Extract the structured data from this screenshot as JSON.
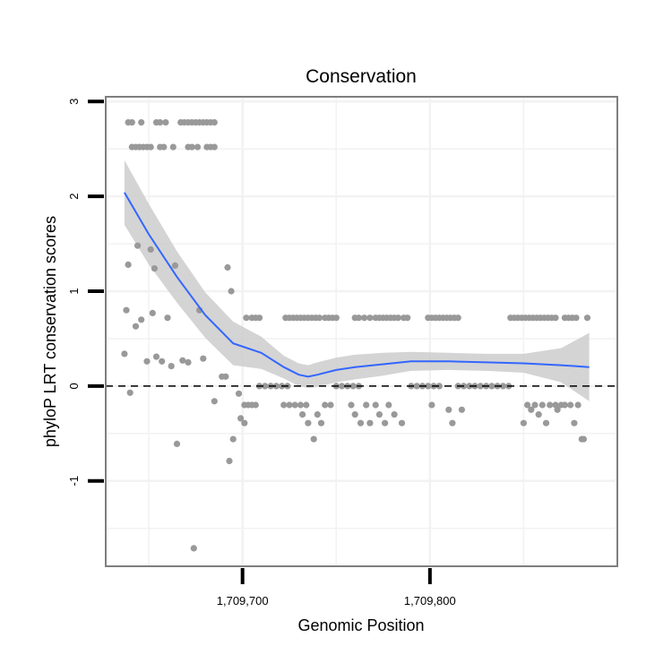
{
  "chart_data": {
    "type": "scatter",
    "title": "Conservation",
    "xlabel": "Genomic Position",
    "ylabel": "phyloP LRT conservation scores",
    "xlim": [
      1709627,
      1709900
    ],
    "ylim": [
      -1.9,
      3.05
    ],
    "x_ticks": [
      {
        "value": 1709700,
        "label": "1,709,700"
      },
      {
        "value": 1709800,
        "label": "1,709,800"
      }
    ],
    "y_ticks": [
      {
        "value": 3,
        "label": "3"
      },
      {
        "value": 2,
        "label": "2"
      },
      {
        "value": 1,
        "label": "1"
      },
      {
        "value": 0,
        "label": "0"
      },
      {
        "value": -1,
        "label": "-1"
      }
    ],
    "reference_line": {
      "y": 0,
      "style": "dashed"
    },
    "colors": {
      "points": "#999999",
      "smooth_line": "#3366ff",
      "confidence_band": "#cccccc",
      "panel_border": "#7f7f7f",
      "grid": "#f2f2f2"
    },
    "points": [
      [
        1709639,
        2.78
      ],
      [
        1709641,
        2.78
      ],
      [
        1709646,
        2.78
      ],
      [
        1709654,
        2.78
      ],
      [
        1709656,
        2.78
      ],
      [
        1709659,
        2.78
      ],
      [
        1709667,
        2.78
      ],
      [
        1709669,
        2.78
      ],
      [
        1709671,
        2.78
      ],
      [
        1709673,
        2.78
      ],
      [
        1709675,
        2.78
      ],
      [
        1709677,
        2.78
      ],
      [
        1709679,
        2.78
      ],
      [
        1709681,
        2.78
      ],
      [
        1709683,
        2.78
      ],
      [
        1709685,
        2.78
      ],
      [
        1709641,
        2.52
      ],
      [
        1709643,
        2.52
      ],
      [
        1709645,
        2.52
      ],
      [
        1709647,
        2.52
      ],
      [
        1709649,
        2.52
      ],
      [
        1709651,
        2.52
      ],
      [
        1709656,
        2.52
      ],
      [
        1709658,
        2.52
      ],
      [
        1709663,
        2.52
      ],
      [
        1709671,
        2.52
      ],
      [
        1709673,
        2.52
      ],
      [
        1709676,
        2.52
      ],
      [
        1709681,
        2.52
      ],
      [
        1709683,
        2.52
      ],
      [
        1709685,
        2.52
      ],
      [
        1709637,
        0.34
      ],
      [
        1709638,
        0.8
      ],
      [
        1709639,
        1.28
      ],
      [
        1709640,
        -0.07
      ],
      [
        1709643,
        0.63
      ],
      [
        1709644,
        1.48
      ],
      [
        1709646,
        0.7
      ],
      [
        1709649,
        0.26
      ],
      [
        1709651,
        1.44
      ],
      [
        1709652,
        0.77
      ],
      [
        1709653,
        1.24
      ],
      [
        1709654,
        0.31
      ],
      [
        1709657,
        0.26
      ],
      [
        1709660,
        0.72
      ],
      [
        1709662,
        0.21
      ],
      [
        1709664,
        1.27
      ],
      [
        1709665,
        -0.61
      ],
      [
        1709668,
        0.27
      ],
      [
        1709671,
        0.25
      ],
      [
        1709674,
        -1.71
      ],
      [
        1709677,
        0.8
      ],
      [
        1709679,
        0.29
      ],
      [
        1709685,
        -0.16
      ],
      [
        1709689,
        0.1
      ],
      [
        1709691,
        0.1
      ],
      [
        1709692,
        1.25
      ],
      [
        1709693,
        -0.79
      ],
      [
        1709694,
        1.0
      ],
      [
        1709695,
        -0.56
      ],
      [
        1709698,
        -0.08
      ],
      [
        1709699,
        -0.34
      ],
      [
        1709701,
        -0.2
      ],
      [
        1709701,
        -0.39
      ],
      [
        1709703,
        -0.2
      ],
      [
        1709705,
        -0.2
      ],
      [
        1709707,
        -0.2
      ],
      [
        1709702,
        0.72
      ],
      [
        1709705,
        0.72
      ],
      [
        1709707,
        0.72
      ],
      [
        1709709,
        0.72
      ],
      [
        1709709,
        0.0
      ],
      [
        1709712,
        0.0
      ],
      [
        1709715,
        0.0
      ],
      [
        1709718,
        0.0
      ],
      [
        1709721,
        0.0
      ],
      [
        1709724,
        0.0
      ],
      [
        1709722,
        -0.2
      ],
      [
        1709725,
        -0.2
      ],
      [
        1709728,
        -0.2
      ],
      [
        1709731,
        -0.2
      ],
      [
        1709734,
        -0.2
      ],
      [
        1709732,
        -0.3
      ],
      [
        1709735,
        -0.39
      ],
      [
        1709738,
        -0.56
      ],
      [
        1709740,
        -0.3
      ],
      [
        1709742,
        -0.39
      ],
      [
        1709744,
        -0.2
      ],
      [
        1709747,
        -0.2
      ],
      [
        1709723,
        0.72
      ],
      [
        1709725,
        0.72
      ],
      [
        1709727,
        0.72
      ],
      [
        1709729,
        0.72
      ],
      [
        1709731,
        0.72
      ],
      [
        1709733,
        0.72
      ],
      [
        1709735,
        0.72
      ],
      [
        1709737,
        0.72
      ],
      [
        1709739,
        0.72
      ],
      [
        1709741,
        0.72
      ],
      [
        1709744,
        0.72
      ],
      [
        1709746,
        0.72
      ],
      [
        1709748,
        0.72
      ],
      [
        1709750,
        0.72
      ],
      [
        1709750,
        0.0
      ],
      [
        1709753,
        0.0
      ],
      [
        1709756,
        0.0
      ],
      [
        1709759,
        0.0
      ],
      [
        1709762,
        0.0
      ],
      [
        1709758,
        -0.2
      ],
      [
        1709760,
        -0.3
      ],
      [
        1709763,
        -0.39
      ],
      [
        1709766,
        -0.2
      ],
      [
        1709768,
        -0.39
      ],
      [
        1709771,
        -0.2
      ],
      [
        1709773,
        -0.3
      ],
      [
        1709776,
        -0.39
      ],
      [
        1709778,
        -0.2
      ],
      [
        1709781,
        -0.3
      ],
      [
        1709785,
        -0.39
      ],
      [
        1709760,
        0.72
      ],
      [
        1709762,
        0.72
      ],
      [
        1709765,
        0.72
      ],
      [
        1709768,
        0.72
      ],
      [
        1709771,
        0.72
      ],
      [
        1709773,
        0.72
      ],
      [
        1709775,
        0.72
      ],
      [
        1709777,
        0.72
      ],
      [
        1709779,
        0.72
      ],
      [
        1709781,
        0.72
      ],
      [
        1709783,
        0.72
      ],
      [
        1709786,
        0.72
      ],
      [
        1709788,
        0.72
      ],
      [
        1709790,
        0.0
      ],
      [
        1709793,
        0.0
      ],
      [
        1709796,
        0.0
      ],
      [
        1709799,
        0.0
      ],
      [
        1709802,
        0.0
      ],
      [
        1709805,
        0.0
      ],
      [
        1709799,
        0.72
      ],
      [
        1709801,
        0.72
      ],
      [
        1709803,
        0.72
      ],
      [
        1709805,
        0.72
      ],
      [
        1709807,
        0.72
      ],
      [
        1709809,
        0.72
      ],
      [
        1709811,
        0.72
      ],
      [
        1709813,
        0.72
      ],
      [
        1709815,
        0.72
      ],
      [
        1709801,
        -0.2
      ],
      [
        1709810,
        -0.25
      ],
      [
        1709812,
        -0.39
      ],
      [
        1709817,
        -0.25
      ],
      [
        1709815,
        0.0
      ],
      [
        1709818,
        0.0
      ],
      [
        1709821,
        0.0
      ],
      [
        1709824,
        0.0
      ],
      [
        1709827,
        0.0
      ],
      [
        1709830,
        0.0
      ],
      [
        1709833,
        0.0
      ],
      [
        1709836,
        0.0
      ],
      [
        1709839,
        0.0
      ],
      [
        1709842,
        0.0
      ],
      [
        1709843,
        0.72
      ],
      [
        1709845,
        0.72
      ],
      [
        1709847,
        0.72
      ],
      [
        1709849,
        0.72
      ],
      [
        1709851,
        0.72
      ],
      [
        1709853,
        0.72
      ],
      [
        1709855,
        0.72
      ],
      [
        1709857,
        0.72
      ],
      [
        1709859,
        0.72
      ],
      [
        1709861,
        0.72
      ],
      [
        1709863,
        0.72
      ],
      [
        1709865,
        0.72
      ],
      [
        1709867,
        0.72
      ],
      [
        1709872,
        0.72
      ],
      [
        1709874,
        0.72
      ],
      [
        1709876,
        0.72
      ],
      [
        1709878,
        0.72
      ],
      [
        1709884,
        0.72
      ],
      [
        1709850,
        -0.39
      ],
      [
        1709852,
        -0.2
      ],
      [
        1709854,
        -0.25
      ],
      [
        1709856,
        -0.2
      ],
      [
        1709858,
        -0.3
      ],
      [
        1709860,
        -0.2
      ],
      [
        1709862,
        -0.39
      ],
      [
        1709864,
        -0.2
      ],
      [
        1709867,
        -0.2
      ],
      [
        1709868,
        -0.25
      ],
      [
        1709870,
        -0.2
      ],
      [
        1709872,
        -0.2
      ],
      [
        1709875,
        -0.2
      ],
      [
        1709877,
        -0.39
      ],
      [
        1709879,
        -0.2
      ],
      [
        1709881,
        -0.56
      ],
      [
        1709882,
        -0.56
      ]
    ],
    "smooth_curve": [
      [
        1709637,
        2.04
      ],
      [
        1709650,
        1.6
      ],
      [
        1709665,
        1.15
      ],
      [
        1709680,
        0.75
      ],
      [
        1709695,
        0.45
      ],
      [
        1709710,
        0.35
      ],
      [
        1709722,
        0.2
      ],
      [
        1709730,
        0.12
      ],
      [
        1709735,
        0.1
      ],
      [
        1709740,
        0.12
      ],
      [
        1709750,
        0.17
      ],
      [
        1709760,
        0.2
      ],
      [
        1709775,
        0.23
      ],
      [
        1709790,
        0.26
      ],
      [
        1709810,
        0.26
      ],
      [
        1709830,
        0.25
      ],
      [
        1709850,
        0.24
      ],
      [
        1709870,
        0.22
      ],
      [
        1709885,
        0.2
      ]
    ],
    "confidence_band": {
      "upper": [
        [
          1709637,
          2.38
        ],
        [
          1709650,
          1.92
        ],
        [
          1709665,
          1.42
        ],
        [
          1709680,
          0.99
        ],
        [
          1709695,
          0.68
        ],
        [
          1709710,
          0.52
        ],
        [
          1709722,
          0.32
        ],
        [
          1709730,
          0.24
        ],
        [
          1709735,
          0.22
        ],
        [
          1709740,
          0.25
        ],
        [
          1709750,
          0.3
        ],
        [
          1709760,
          0.33
        ],
        [
          1709775,
          0.35
        ],
        [
          1709790,
          0.36
        ],
        [
          1709810,
          0.35
        ],
        [
          1709830,
          0.34
        ],
        [
          1709850,
          0.34
        ],
        [
          1709870,
          0.4
        ],
        [
          1709885,
          0.56
        ]
      ],
      "lower": [
        [
          1709637,
          1.7
        ],
        [
          1709650,
          1.28
        ],
        [
          1709665,
          0.88
        ],
        [
          1709680,
          0.51
        ],
        [
          1709695,
          0.22
        ],
        [
          1709710,
          0.18
        ],
        [
          1709722,
          0.08
        ],
        [
          1709730,
          0.0
        ],
        [
          1709735,
          -0.02
        ],
        [
          1709740,
          -0.01
        ],
        [
          1709750,
          0.04
        ],
        [
          1709760,
          0.07
        ],
        [
          1709775,
          0.11
        ],
        [
          1709790,
          0.16
        ],
        [
          1709810,
          0.17
        ],
        [
          1709830,
          0.16
        ],
        [
          1709850,
          0.14
        ],
        [
          1709870,
          0.04
        ],
        [
          1709885,
          -0.16
        ]
      ]
    }
  }
}
